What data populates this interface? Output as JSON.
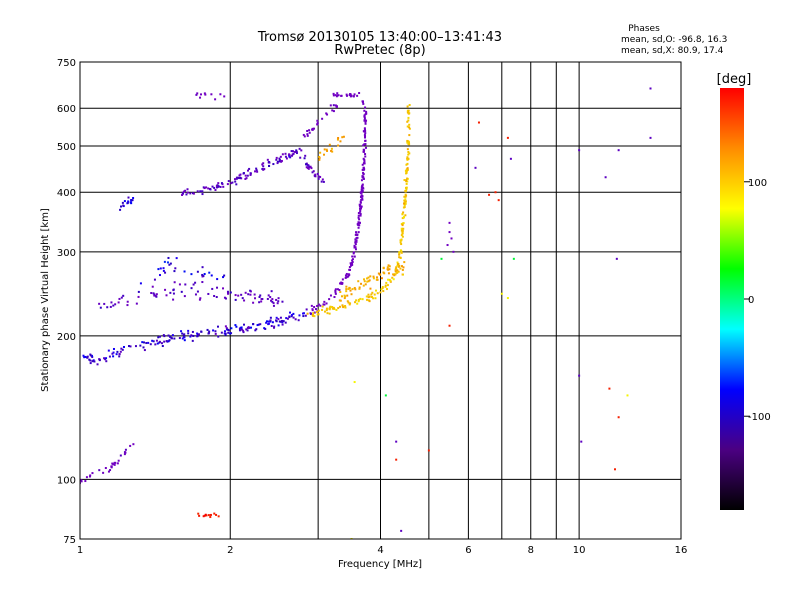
{
  "chart_data": {
    "type": "scatter",
    "title": "Tromsø 20130105 13:40:00–13:41:43",
    "subtitle": "RwPretec (8p)",
    "xlabel": "Frequency [MHz]",
    "ylabel": "Stationary phase Virtual Height [km]",
    "x_scale": "log",
    "y_scale": "log",
    "xlim": [
      1,
      16
    ],
    "ylim": [
      75,
      750
    ],
    "x_ticks": [
      1,
      2,
      4,
      6,
      8,
      10,
      16
    ],
    "x_gridlines": [
      1,
      2,
      3,
      4,
      5,
      6,
      7,
      8,
      9,
      10,
      16
    ],
    "y_ticks": [
      75,
      100,
      200,
      300,
      400,
      500,
      600,
      750
    ],
    "y_gridlines": [
      100,
      200,
      300,
      400,
      500,
      600
    ],
    "grid": true,
    "stats": {
      "heading": "Phases",
      "line_o": "mean, sd,O: -96.8, 16.3",
      "line_x": "mean, sd,X:  80.9, 17.4"
    },
    "colorbar": {
      "label": "[deg]",
      "min": -180,
      "max": 180,
      "ticks": [
        100,
        0,
        -100
      ],
      "stops": [
        "#ff0000",
        "#ff8c00",
        "#ffff00",
        "#00ff00",
        "#00ffff",
        "#0000ff",
        "#4b0082",
        "#000000"
      ]
    },
    "series": [
      {
        "kind": "trace",
        "phase": -100,
        "points": [
          [
            1.02,
            180
          ],
          [
            1.08,
            178
          ],
          [
            1.15,
            181
          ],
          [
            1.22,
            186
          ],
          [
            1.3,
            190
          ],
          [
            1.4,
            194
          ],
          [
            1.55,
            199
          ],
          [
            1.7,
            201
          ],
          [
            1.9,
            203
          ],
          [
            2.1,
            206
          ],
          [
            2.3,
            210
          ],
          [
            2.5,
            214
          ],
          [
            2.7,
            219
          ],
          [
            2.9,
            224
          ]
        ],
        "jitter": 0.035,
        "count": 190
      },
      {
        "kind": "trace",
        "phase": -110,
        "points": [
          [
            1.1,
            230
          ],
          [
            1.25,
            240
          ],
          [
            1.45,
            245
          ],
          [
            1.7,
            250
          ],
          [
            2.0,
            245
          ],
          [
            2.3,
            240
          ],
          [
            2.6,
            236
          ]
        ],
        "jitter": 0.06,
        "count": 90
      },
      {
        "kind": "trace",
        "phase": -95,
        "points": [
          [
            1.3,
            250
          ],
          [
            1.4,
            265
          ],
          [
            1.5,
            285
          ],
          [
            1.6,
            275
          ],
          [
            1.75,
            270
          ],
          [
            2.0,
            265
          ]
        ],
        "jitter": 0.05,
        "count": 30
      },
      {
        "kind": "trace",
        "phase": -130,
        "points": [
          [
            2.9,
            225
          ],
          [
            3.1,
            235
          ],
          [
            3.3,
            250
          ],
          [
            3.45,
            270
          ],
          [
            3.55,
            300
          ],
          [
            3.62,
            350
          ],
          [
            3.67,
            400
          ],
          [
            3.7,
            450
          ],
          [
            3.72,
            500
          ],
          [
            3.73,
            560
          ],
          [
            3.72,
            600
          ],
          [
            3.65,
            630
          ]
        ],
        "jitter": 0.025,
        "count": 200
      },
      {
        "kind": "trace",
        "phase": -130,
        "points": [
          [
            3.2,
            640
          ],
          [
            3.35,
            635
          ],
          [
            3.5,
            640
          ],
          [
            3.65,
            645
          ]
        ],
        "jitter": 0.015,
        "count": 22
      },
      {
        "kind": "trace",
        "phase": -120,
        "points": [
          [
            2.8,
            520
          ],
          [
            3.0,
            555
          ],
          [
            3.15,
            590
          ],
          [
            3.3,
            610
          ]
        ],
        "jitter": 0.03,
        "count": 26
      },
      {
        "kind": "trace",
        "phase": 95,
        "points": [
          [
            2.85,
            222
          ],
          [
            3.1,
            226
          ],
          [
            3.4,
            232
          ],
          [
            3.7,
            238
          ],
          [
            3.95,
            245
          ],
          [
            4.1,
            255
          ],
          [
            4.25,
            265
          ],
          [
            4.35,
            285
          ],
          [
            4.4,
            310
          ],
          [
            4.45,
            350
          ],
          [
            4.5,
            400
          ],
          [
            4.52,
            450
          ],
          [
            4.55,
            500
          ],
          [
            4.56,
            560
          ],
          [
            4.55,
            610
          ]
        ],
        "jitter": 0.03,
        "count": 200
      },
      {
        "kind": "trace",
        "phase": 105,
        "points": [
          [
            3.3,
            240
          ],
          [
            3.6,
            255
          ],
          [
            3.9,
            265
          ],
          [
            4.2,
            280
          ],
          [
            4.5,
            275
          ]
        ],
        "jitter": 0.045,
        "count": 70
      },
      {
        "kind": "trace",
        "phase": 105,
        "points": [
          [
            3.0,
            470
          ],
          [
            3.15,
            490
          ],
          [
            3.3,
            510
          ],
          [
            3.4,
            530
          ]
        ],
        "jitter": 0.04,
        "count": 18
      },
      {
        "kind": "trace",
        "phase": -110,
        "points": [
          [
            1.6,
            395
          ],
          [
            1.8,
            405
          ],
          [
            2.0,
            420
          ],
          [
            2.2,
            440
          ],
          [
            2.4,
            460
          ],
          [
            2.6,
            475
          ],
          [
            2.75,
            490
          ],
          [
            2.9,
            445
          ],
          [
            3.0,
            430
          ],
          [
            3.1,
            420
          ]
        ],
        "jitter": 0.03,
        "count": 140
      },
      {
        "kind": "trace",
        "phase": -95,
        "points": [
          [
            1.2,
            370
          ],
          [
            1.25,
            380
          ],
          [
            1.3,
            395
          ]
        ],
        "jitter": 0.03,
        "count": 16
      },
      {
        "kind": "trace",
        "phase": -120,
        "points": [
          [
            1.0,
            98
          ],
          [
            1.05,
            102
          ],
          [
            1.15,
            106
          ],
          [
            1.22,
            112
          ],
          [
            1.28,
            120
          ]
        ],
        "jitter": 0.025,
        "count": 30
      },
      {
        "kind": "trace",
        "phase": 150,
        "points": [
          [
            1.7,
            85
          ],
          [
            1.8,
            84
          ],
          [
            1.9,
            84
          ]
        ],
        "jitter": 0.015,
        "count": 12
      },
      {
        "kind": "trace",
        "phase": -120,
        "points": [
          [
            1.7,
            640
          ],
          [
            1.9,
            635
          ],
          [
            2.05,
            640
          ]
        ],
        "jitter": 0.02,
        "count": 10
      },
      {
        "kind": "scatter",
        "phase": -130,
        "points": [
          [
            5.5,
            330
          ],
          [
            5.55,
            320
          ],
          [
            5.5,
            345
          ],
          [
            5.45,
            310
          ],
          [
            5.6,
            300
          ]
        ]
      },
      {
        "kind": "scatter",
        "phase": 150,
        "points": [
          [
            5.5,
            210
          ],
          [
            4.3,
            110
          ],
          [
            5.0,
            115
          ],
          [
            6.3,
            560
          ],
          [
            6.8,
            400
          ],
          [
            6.9,
            385
          ],
          [
            7.2,
            520
          ],
          [
            11.8,
            105
          ],
          [
            12.0,
            135
          ],
          [
            11.5,
            155
          ],
          [
            6.6,
            395
          ]
        ]
      },
      {
        "kind": "scatter",
        "phase": 80,
        "points": [
          [
            3.5,
            75
          ],
          [
            3.55,
            160
          ],
          [
            7.0,
            245
          ],
          [
            7.2,
            240
          ],
          [
            12.5,
            150
          ]
        ]
      },
      {
        "kind": "scatter",
        "phase": -110,
        "points": [
          [
            10.0,
            490
          ],
          [
            10.1,
            120
          ],
          [
            10.0,
            165
          ],
          [
            11.3,
            430
          ],
          [
            11.9,
            290
          ],
          [
            12.0,
            490
          ],
          [
            13.9,
            520
          ],
          [
            13.9,
            660
          ],
          [
            7.3,
            470
          ],
          [
            4.4,
            78
          ],
          [
            4.3,
            120
          ],
          [
            6.2,
            450
          ]
        ]
      },
      {
        "kind": "scatter",
        "phase": -10,
        "points": [
          [
            7.4,
            290
          ],
          [
            4.1,
            150
          ],
          [
            5.3,
            290
          ]
        ]
      }
    ]
  }
}
